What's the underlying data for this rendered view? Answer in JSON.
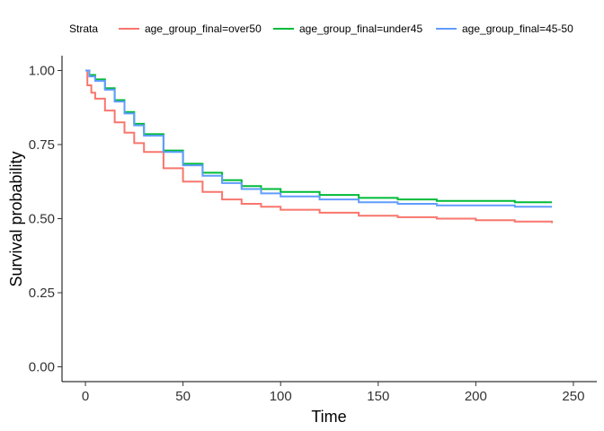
{
  "chart_data": {
    "type": "line",
    "title": "",
    "xlabel": "Time",
    "ylabel": "Survival probability",
    "xlim": [
      -12,
      262
    ],
    "ylim": [
      -0.05,
      1.05
    ],
    "x_ticks": [
      0,
      50,
      100,
      150,
      200,
      250
    ],
    "x_tick_labels": [
      "0",
      "50",
      "100",
      "150",
      "200",
      "250"
    ],
    "y_ticks": [
      0,
      0.25,
      0.5,
      0.75,
      1
    ],
    "y_tick_labels": [
      "0.00",
      "0.25",
      "0.50",
      "0.75",
      "1.00"
    ],
    "grid": false,
    "legend_position": "top",
    "legend_title": "Strata",
    "series": [
      {
        "name": "age_group_final=over50",
        "color": "#F8766D",
        "x": [
          0,
          1,
          3,
          5,
          10,
          15,
          20,
          25,
          30,
          40,
          50,
          60,
          70,
          80,
          90,
          100,
          120,
          140,
          160,
          180,
          200,
          220,
          239
        ],
        "y": [
          1.0,
          0.95,
          0.925,
          0.905,
          0.865,
          0.825,
          0.79,
          0.755,
          0.725,
          0.67,
          0.625,
          0.59,
          0.565,
          0.55,
          0.54,
          0.53,
          0.52,
          0.51,
          0.505,
          0.5,
          0.495,
          0.49,
          0.485
        ]
      },
      {
        "name": "age_group_final=under45",
        "color": "#00BA38",
        "x": [
          0,
          2,
          5,
          10,
          15,
          20,
          25,
          30,
          40,
          50,
          60,
          70,
          80,
          90,
          100,
          120,
          140,
          160,
          180,
          200,
          220,
          239
        ],
        "y": [
          1.0,
          0.985,
          0.97,
          0.94,
          0.9,
          0.86,
          0.82,
          0.785,
          0.73,
          0.685,
          0.655,
          0.63,
          0.61,
          0.6,
          0.59,
          0.58,
          0.57,
          0.565,
          0.56,
          0.56,
          0.555,
          0.555
        ]
      },
      {
        "name": "age_group_final=45-50",
        "color": "#619CFF",
        "x": [
          0,
          2,
          5,
          10,
          15,
          20,
          25,
          30,
          40,
          50,
          60,
          70,
          80,
          90,
          100,
          120,
          140,
          160,
          180,
          200,
          220,
          239
        ],
        "y": [
          1.0,
          0.98,
          0.965,
          0.935,
          0.895,
          0.855,
          0.815,
          0.78,
          0.725,
          0.68,
          0.645,
          0.62,
          0.6,
          0.585,
          0.575,
          0.565,
          0.555,
          0.55,
          0.545,
          0.545,
          0.54,
          0.54
        ]
      }
    ]
  }
}
